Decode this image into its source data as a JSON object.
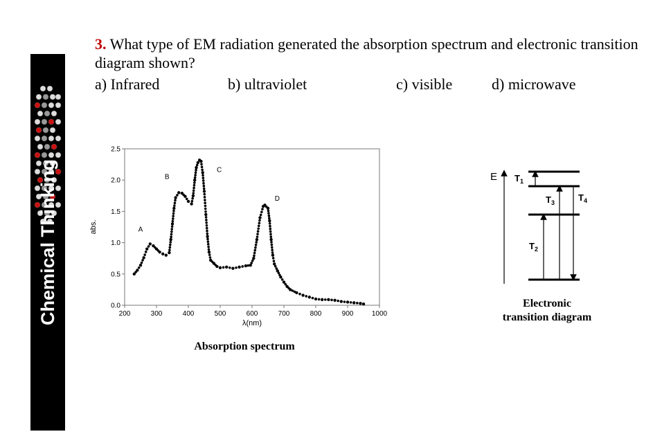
{
  "sidebar": {
    "title": "Chemical Thinking",
    "logo_icon": "molecule-model-icon"
  },
  "question": {
    "number": "3.",
    "text": "What type of EM radiation generated the absorption spectrum and electronic transition diagram shown?",
    "choices": [
      {
        "label": "a) Infrared"
      },
      {
        "label": "b) ultraviolet"
      },
      {
        "label": "c) visible"
      },
      {
        "label": "d) microwave"
      }
    ]
  },
  "spectrum": {
    "caption": "Absorption spectrum",
    "peak_labels": [
      "A",
      "B",
      "C",
      "D"
    ]
  },
  "transition_diagram": {
    "caption_line1": "Electronic",
    "caption_line2": "transition diagram",
    "energy_label": "E",
    "transitions": [
      {
        "letter": "T",
        "sub": "1"
      },
      {
        "letter": "T",
        "sub": "2"
      },
      {
        "letter": "T",
        "sub": "3"
      },
      {
        "letter": "T",
        "sub": "4"
      }
    ]
  },
  "chart_data": {
    "type": "scatter",
    "title": "",
    "xlabel": "λ(nm)",
    "ylabel": "abs.",
    "xlim": [
      200,
      1000
    ],
    "ylim": [
      0,
      2.5
    ],
    "xticks": [
      200,
      300,
      400,
      500,
      600,
      700,
      800,
      900,
      1000
    ],
    "yticks": [
      0.0,
      0.5,
      1.0,
      1.5,
      2.0,
      2.5
    ],
    "ytick_labels": [
      "0.0",
      "0.5",
      "1.0",
      "1.5",
      "2.0",
      "2.5"
    ],
    "grid": false,
    "series": [
      {
        "points": [
          [
            230,
            0.5
          ],
          [
            240,
            0.56
          ],
          [
            250,
            0.64
          ],
          [
            260,
            0.76
          ],
          [
            270,
            0.9
          ],
          [
            280,
            0.98
          ],
          [
            290,
            0.95
          ],
          [
            300,
            0.9
          ],
          [
            310,
            0.85
          ],
          [
            320,
            0.82
          ],
          [
            330,
            0.8
          ],
          [
            340,
            0.84
          ],
          [
            345,
            1.05
          ],
          [
            350,
            1.3
          ],
          [
            355,
            1.55
          ],
          [
            360,
            1.72
          ],
          [
            370,
            1.8
          ],
          [
            380,
            1.79
          ],
          [
            390,
            1.74
          ],
          [
            400,
            1.66
          ],
          [
            410,
            1.62
          ],
          [
            415,
            1.75
          ],
          [
            420,
            2.0
          ],
          [
            425,
            2.2
          ],
          [
            430,
            2.28
          ],
          [
            435,
            2.32
          ],
          [
            440,
            2.3
          ],
          [
            445,
            2.12
          ],
          [
            450,
            1.82
          ],
          [
            455,
            1.45
          ],
          [
            460,
            1.1
          ],
          [
            465,
            0.85
          ],
          [
            470,
            0.72
          ],
          [
            480,
            0.67
          ],
          [
            490,
            0.62
          ],
          [
            500,
            0.6
          ],
          [
            520,
            0.61
          ],
          [
            540,
            0.59
          ],
          [
            560,
            0.61
          ],
          [
            580,
            0.63
          ],
          [
            595,
            0.64
          ],
          [
            605,
            0.75
          ],
          [
            615,
            1.05
          ],
          [
            625,
            1.4
          ],
          [
            635,
            1.58
          ],
          [
            640,
            1.6
          ],
          [
            650,
            1.55
          ],
          [
            655,
            1.35
          ],
          [
            660,
            1.05
          ],
          [
            665,
            0.8
          ],
          [
            670,
            0.66
          ],
          [
            680,
            0.55
          ],
          [
            690,
            0.45
          ],
          [
            700,
            0.37
          ],
          [
            710,
            0.3
          ],
          [
            720,
            0.25
          ],
          [
            740,
            0.2
          ],
          [
            760,
            0.16
          ],
          [
            780,
            0.13
          ],
          [
            800,
            0.1
          ],
          [
            820,
            0.09
          ],
          [
            840,
            0.09
          ],
          [
            860,
            0.08
          ],
          [
            880,
            0.06
          ],
          [
            900,
            0.05
          ],
          [
            920,
            0.04
          ],
          [
            940,
            0.03
          ],
          [
            950,
            0.02
          ]
        ]
      }
    ],
    "annotations": [
      {
        "text": "A",
        "x": 250,
        "y": 1.18
      },
      {
        "text": "B",
        "x": 333,
        "y": 2.02
      },
      {
        "text": "C",
        "x": 497,
        "y": 2.13
      },
      {
        "text": "D",
        "x": 679,
        "y": 1.67
      }
    ]
  }
}
